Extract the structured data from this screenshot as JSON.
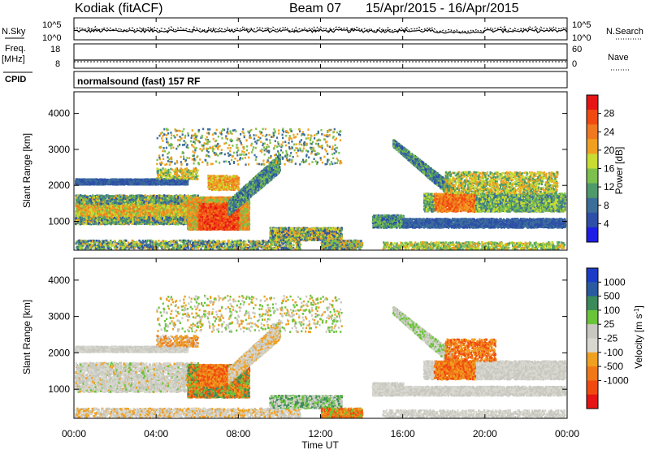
{
  "header": {
    "station": "Kodiak (fitACF)",
    "beam": "Beam 07",
    "date_range": "15/Apr/2015 - 16/Apr/2015"
  },
  "top_panel": {
    "left_label": "N.Sky",
    "left_ticks": [
      "10^5",
      "10^0"
    ],
    "right_ticks": [
      "10^5",
      "10^0"
    ],
    "right_label": "N.Search"
  },
  "freq_panel": {
    "label_line1": "Freq.",
    "label_line2": "[MHz]",
    "left_ticks": [
      "18",
      "8"
    ],
    "right_ticks": [
      "60",
      "0"
    ],
    "right_label": "Nave"
  },
  "cpid": {
    "label": "CPID",
    "text": "normalsound (fast) 157 RF"
  },
  "chart_data": [
    {
      "type": "heatmap",
      "name": "Power",
      "ylabel": "Slant Range [km]",
      "yticks": [
        "1000",
        "2000",
        "3000",
        "4000"
      ],
      "ylim": [
        200,
        4600
      ],
      "colorbar_label": "Power [dB]",
      "colorbar_ticks": [
        "4",
        "8",
        "12",
        "16",
        "20",
        "24",
        "28"
      ],
      "colors": [
        "#1e1ee6",
        "#2e4fa8",
        "#3c6e9a",
        "#4e9a6a",
        "#7cc04e",
        "#c8dc32",
        "#f0a020",
        "#f07820",
        "#f04a10",
        "#e61414"
      ]
    },
    {
      "type": "heatmap",
      "name": "Velocity",
      "ylabel": "Slant Range [km]",
      "yticks": [
        "1000",
        "2000",
        "3000",
        "4000"
      ],
      "ylim": [
        200,
        4600
      ],
      "colorbar_label": "Velocity [m s^-1]",
      "colorbar_ticks": [
        "1000",
        "500",
        "100",
        "25",
        "-25",
        "-100",
        "-500",
        "-1000"
      ],
      "colors": [
        "#1c3cc8",
        "#2a5aa0",
        "#3a8a5a",
        "#6ac43a",
        "#c8c8c0",
        "#d8d8d0",
        "#f0a020",
        "#f07818",
        "#f04a10",
        "#e61414"
      ]
    }
  ],
  "xaxis": {
    "ticks": [
      "00:00",
      "04:00",
      "08:00",
      "12:00",
      "16:00",
      "20:00",
      "00:00"
    ],
    "label": "Time UT"
  }
}
